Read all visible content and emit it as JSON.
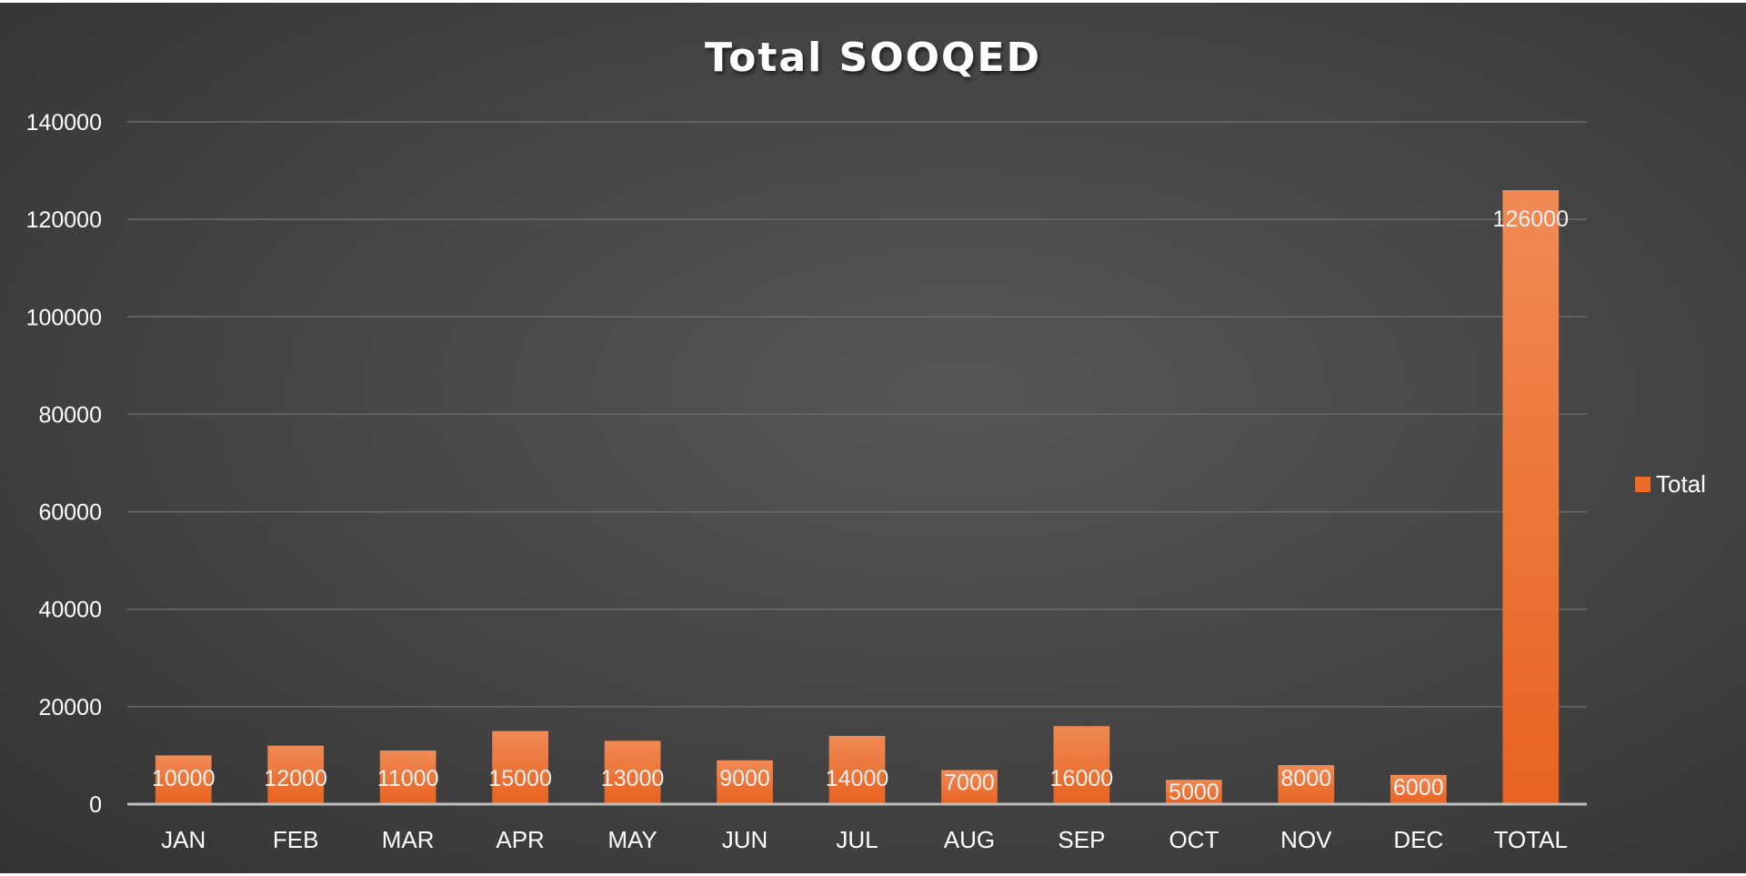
{
  "chart_data": {
    "type": "bar",
    "title": "Total SOOQED",
    "xlabel": "",
    "ylabel": "",
    "categories": [
      "JAN",
      "FEB",
      "MAR",
      "APR",
      "MAY",
      "JUN",
      "JUL",
      "AUG",
      "SEP",
      "OCT",
      "NOV",
      "DEC",
      "TOTAL"
    ],
    "series": [
      {
        "name": "Total",
        "values": [
          10000,
          12000,
          11000,
          15000,
          13000,
          9000,
          14000,
          7000,
          16000,
          5000,
          8000,
          6000,
          126000
        ],
        "color": "#ED6A28"
      }
    ],
    "ylim": [
      0,
      140000
    ],
    "yticks": [
      0,
      20000,
      40000,
      60000,
      80000,
      100000,
      120000,
      140000
    ],
    "grid": true,
    "legend_position": "right",
    "data_labels": true
  },
  "colors": {
    "background": "#474747",
    "bar": "#ED6A28",
    "bar_light": "#F08A55",
    "text": "#FFFFFF",
    "grid": "#6A6A6A"
  }
}
